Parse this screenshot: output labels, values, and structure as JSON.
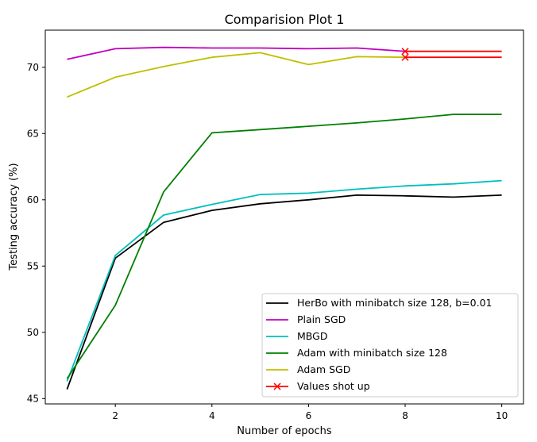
{
  "chart_data": {
    "type": "line",
    "title": "Comparision Plot 1",
    "xlabel": "Number of epochs",
    "ylabel": "Testing accuracy (%)",
    "xlim": [
      0.55,
      10.45
    ],
    "ylim": [
      44.6,
      72.8
    ],
    "xticks": [
      2,
      4,
      6,
      8,
      10
    ],
    "yticks": [
      45,
      50,
      55,
      60,
      65,
      70
    ],
    "grid": false,
    "legend_position": "lower-right",
    "series": [
      {
        "name": "HerBo with minibatch size 128, b=0.01",
        "color": "#000000",
        "marker": "none",
        "x": [
          1,
          2,
          3,
          4,
          5,
          6,
          7,
          8,
          9,
          10
        ],
        "y": [
          45.7,
          55.6,
          58.3,
          59.2,
          59.7,
          60.0,
          60.35,
          60.3,
          60.2,
          60.35
        ]
      },
      {
        "name": "Plain SGD",
        "color": "#bf00bf",
        "marker": "none",
        "x": [
          1,
          2,
          3,
          4,
          5,
          6,
          7,
          8
        ],
        "y": [
          70.6,
          71.4,
          71.5,
          71.45,
          71.45,
          71.4,
          71.45,
          71.2
        ]
      },
      {
        "name": "MBGD",
        "color": "#00bfbf",
        "marker": "none",
        "x": [
          1,
          2,
          3,
          4,
          5,
          6,
          7,
          8,
          9,
          10
        ],
        "y": [
          46.3,
          55.8,
          58.85,
          59.65,
          60.4,
          60.5,
          60.8,
          61.05,
          61.2,
          61.45
        ]
      },
      {
        "name": "Adam with minibatch size 128",
        "color": "#008000",
        "marker": "none",
        "x": [
          1,
          2,
          3,
          4,
          5,
          6,
          7,
          8,
          9,
          10
        ],
        "y": [
          46.5,
          52.05,
          60.6,
          65.05,
          65.3,
          65.55,
          65.8,
          66.1,
          66.45,
          66.45
        ]
      },
      {
        "name": "Adam SGD",
        "color": "#bfbf00",
        "marker": "none",
        "x": [
          1,
          2,
          3,
          4,
          5,
          6,
          7,
          8
        ],
        "y": [
          67.75,
          69.25,
          70.05,
          70.75,
          71.1,
          70.2,
          70.8,
          70.75
        ]
      },
      {
        "name": "Values shot up",
        "color": "#ff0000",
        "marker": "x",
        "segments": [
          {
            "x": [
              8,
              10
            ],
            "y": [
              71.2,
              71.2
            ]
          },
          {
            "x": [
              8,
              10
            ],
            "y": [
              70.75,
              70.75
            ]
          }
        ]
      }
    ]
  }
}
